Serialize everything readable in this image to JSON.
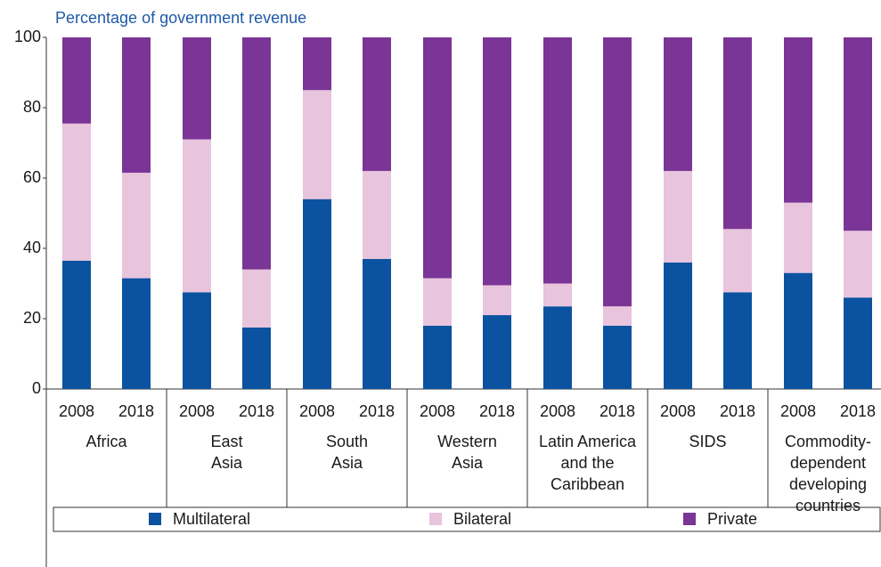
{
  "chart_data": {
    "type": "stacked_bar",
    "title": "Percentage of government revenue",
    "categories": [
      "2008",
      "2018",
      "2008",
      "2018",
      "2008",
      "2018",
      "2008",
      "2018",
      "2008",
      "2018",
      "2008",
      "2018",
      "2008",
      "2018"
    ],
    "groups": [
      [
        "Africa"
      ],
      [
        "East",
        "Asia"
      ],
      [
        "South",
        "Asia"
      ],
      [
        "Western",
        "Asia"
      ],
      [
        "Latin America",
        "and the",
        "Caribbean"
      ],
      [
        "SIDS"
      ],
      [
        "Commodity-",
        "dependent",
        "developing",
        "countries"
      ]
    ],
    "series": [
      {
        "name": "Multilateral",
        "color": "#0b52a0",
        "values": [
          36.5,
          31.5,
          27.5,
          17.5,
          54,
          37,
          18,
          21,
          23.5,
          18,
          36,
          27.5,
          33,
          26
        ]
      },
      {
        "name": "Bilateral",
        "color": "#e8c4dd",
        "values": [
          39,
          30,
          43.5,
          16.5,
          31,
          25,
          13.5,
          8.5,
          6.5,
          5.5,
          26,
          18,
          20,
          19
        ]
      },
      {
        "name": "Private",
        "color": "#7a3596",
        "values": [
          24.5,
          38.5,
          29,
          66,
          15,
          38,
          68.5,
          70.5,
          70,
          76.5,
          38,
          54.5,
          47,
          55
        ]
      }
    ],
    "ylim": [
      0,
      100
    ],
    "yticks": [
      0,
      20,
      40,
      60,
      80,
      100
    ]
  }
}
